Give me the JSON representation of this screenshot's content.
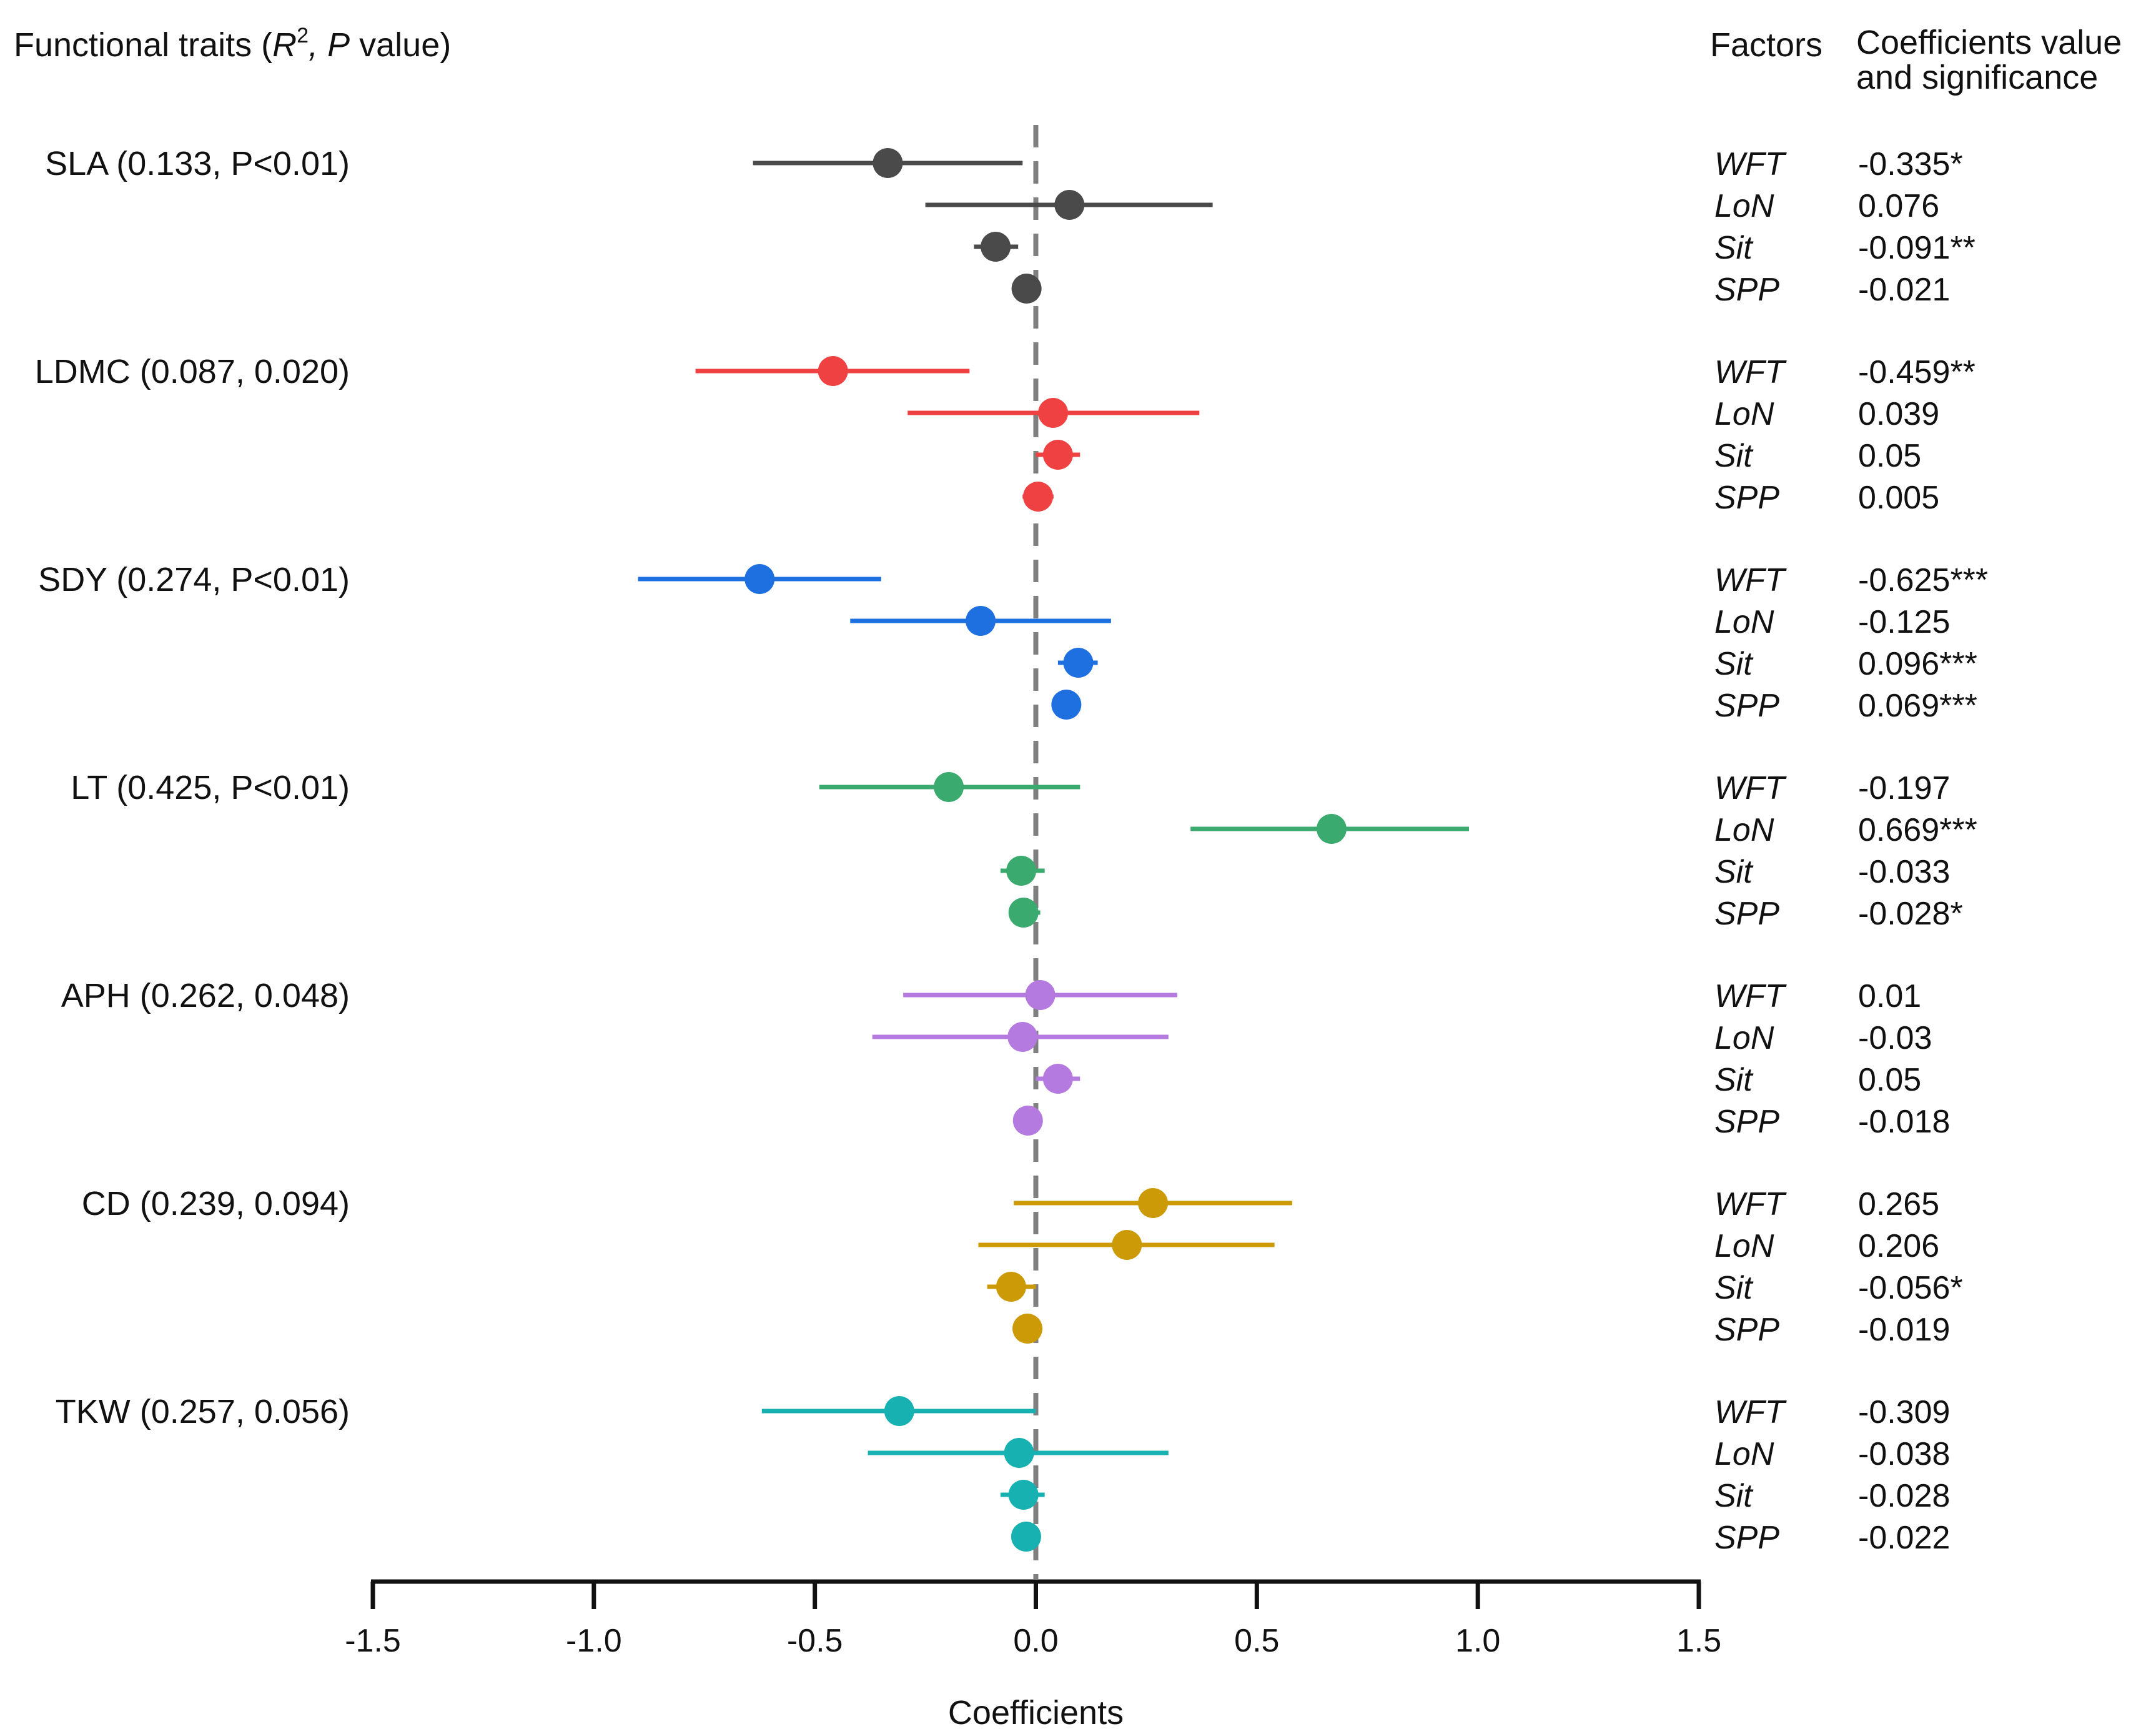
{
  "chart_data": {
    "type": "forest",
    "header": {
      "traits": "Functional traits (",
      "r": "R",
      "sup": "2",
      "comma": ", ",
      "p": "P",
      "value": "  value)",
      "factors": "Factors",
      "coef_line1": "Coefficients value",
      "coef_line2": "and significance"
    },
    "xlabel": "Coefficients",
    "xlim": [
      -1.5,
      1.5
    ],
    "xticks": [
      -1.5,
      -1.0,
      -0.5,
      0.0,
      0.5,
      1.0,
      1.5
    ],
    "xtick_labels": [
      "-1.5",
      "-1.0",
      "-0.5",
      "0.0",
      "0.5",
      "1.0",
      "1.5"
    ],
    "reference_line": 0,
    "groups": [
      {
        "label": "SLA (0.133, P<0.01)",
        "color": "#4a4a4a",
        "rows": [
          {
            "factor": "WFT",
            "estimate": -0.335,
            "ci": [
              -0.64,
              -0.03
            ],
            "text": "-0.335*"
          },
          {
            "factor": "LoN",
            "estimate": 0.076,
            "ci": [
              -0.25,
              0.4
            ],
            "text": "0.076"
          },
          {
            "factor": "Sit",
            "estimate": -0.091,
            "ci": [
              -0.14,
              -0.04
            ],
            "text": "-0.091**"
          },
          {
            "factor": "SPP",
            "estimate": -0.021,
            "ci": [
              -0.05,
              0.01
            ],
            "text": "-0.021"
          }
        ]
      },
      {
        "label": "LDMC (0.087, 0.020)",
        "color": "#ef4141",
        "rows": [
          {
            "factor": "WFT",
            "estimate": -0.459,
            "ci": [
              -0.77,
              -0.15
            ],
            "text": "-0.459**"
          },
          {
            "factor": "LoN",
            "estimate": 0.039,
            "ci": [
              -0.29,
              0.37
            ],
            "text": "0.039"
          },
          {
            "factor": "Sit",
            "estimate": 0.05,
            "ci": [
              0.0,
              0.1
            ],
            "text": "0.05"
          },
          {
            "factor": "SPP",
            "estimate": 0.005,
            "ci": [
              -0.03,
              0.04
            ],
            "text": "0.005"
          }
        ]
      },
      {
        "label": "SDY (0.274, P<0.01)",
        "color": "#1e6fe0",
        "rows": [
          {
            "factor": "WFT",
            "estimate": -0.625,
            "ci": [
              -0.9,
              -0.35
            ],
            "text": "-0.625***"
          },
          {
            "factor": "LoN",
            "estimate": -0.125,
            "ci": [
              -0.42,
              0.17
            ],
            "text": "-0.125"
          },
          {
            "factor": "Sit",
            "estimate": 0.096,
            "ci": [
              0.05,
              0.14
            ],
            "text": "0.096***"
          },
          {
            "factor": "SPP",
            "estimate": 0.069,
            "ci": [
              0.04,
              0.1
            ],
            "text": "0.069***"
          }
        ]
      },
      {
        "label": "LT (0.425, P<0.01)",
        "color": "#3aaa6e",
        "rows": [
          {
            "factor": "WFT",
            "estimate": -0.197,
            "ci": [
              -0.49,
              0.1
            ],
            "text": "-0.197"
          },
          {
            "factor": "LoN",
            "estimate": 0.669,
            "ci": [
              0.35,
              0.98
            ],
            "text": "0.669***"
          },
          {
            "factor": "Sit",
            "estimate": -0.033,
            "ci": [
              -0.08,
              0.02
            ],
            "text": "-0.033"
          },
          {
            "factor": "SPP",
            "estimate": -0.028,
            "ci": [
              -0.06,
              0.01
            ],
            "text": "-0.028*"
          }
        ]
      },
      {
        "label": "APH (0.262, 0.048)",
        "color": "#b57ae0",
        "rows": [
          {
            "factor": "WFT",
            "estimate": 0.01,
            "ci": [
              -0.3,
              0.32
            ],
            "text": "0.01"
          },
          {
            "factor": "LoN",
            "estimate": -0.03,
            "ci": [
              -0.37,
              0.3
            ],
            "text": "-0.03"
          },
          {
            "factor": "Sit",
            "estimate": 0.05,
            "ci": [
              0.0,
              0.1
            ],
            "text": "0.05"
          },
          {
            "factor": "SPP",
            "estimate": -0.018,
            "ci": [
              -0.05,
              0.01
            ],
            "text": "-0.018"
          }
        ]
      },
      {
        "label": "CD (0.239, 0.094)",
        "color": "#cc9a06",
        "rows": [
          {
            "factor": "WFT",
            "estimate": 0.265,
            "ci": [
              -0.05,
              0.58
            ],
            "text": "0.265"
          },
          {
            "factor": "LoN",
            "estimate": 0.206,
            "ci": [
              -0.13,
              0.54
            ],
            "text": "0.206"
          },
          {
            "factor": "Sit",
            "estimate": -0.056,
            "ci": [
              -0.11,
              0.0
            ],
            "text": "-0.056*"
          },
          {
            "factor": "SPP",
            "estimate": -0.019,
            "ci": [
              -0.05,
              0.01
            ],
            "text": "-0.019"
          }
        ]
      },
      {
        "label": "TKW (0.257, 0.056)",
        "color": "#17b1b1",
        "rows": [
          {
            "factor": "WFT",
            "estimate": -0.309,
            "ci": [
              -0.62,
              0.0
            ],
            "text": "-0.309"
          },
          {
            "factor": "LoN",
            "estimate": -0.038,
            "ci": [
              -0.38,
              0.3
            ],
            "text": "-0.038"
          },
          {
            "factor": "Sit",
            "estimate": -0.028,
            "ci": [
              -0.08,
              0.02
            ],
            "text": "-0.028"
          },
          {
            "factor": "SPP",
            "estimate": -0.022,
            "ci": [
              -0.05,
              0.01
            ],
            "text": "-0.022"
          }
        ]
      }
    ]
  }
}
